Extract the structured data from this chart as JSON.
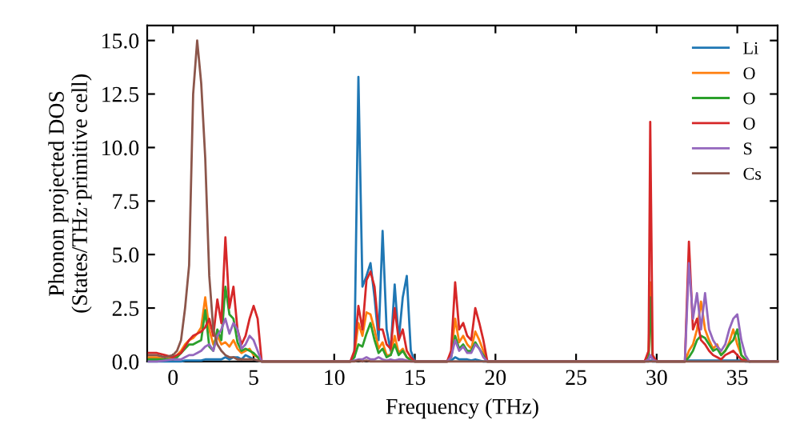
{
  "chart_data": {
    "type": "line",
    "xlabel": "Frequency (THz)",
    "ylabel": "Phonon projected DOS\n(States/THz·primitive cell)",
    "x": [
      -1.5,
      -1,
      -0.5,
      0,
      0.25,
      0.5,
      0.75,
      1,
      1.25,
      1.5,
      1.75,
      2,
      2.25,
      2.5,
      2.75,
      3,
      3.25,
      3.5,
      3.75,
      4,
      4.25,
      4.5,
      4.75,
      5,
      5.25,
      5.5,
      11.0,
      11.25,
      11.5,
      11.75,
      12.0,
      12.25,
      12.5,
      12.75,
      13.0,
      13.25,
      13.5,
      13.75,
      14.0,
      14.25,
      14.5,
      14.75,
      15.0,
      17,
      17.25,
      17.5,
      17.75,
      18,
      18.25,
      18.5,
      18.75,
      19,
      19.25,
      19.5,
      29.25,
      29.5,
      29.6,
      29.75,
      30,
      31.75,
      32,
      32.25,
      32.5,
      32.75,
      33,
      33.25,
      33.5,
      33.75,
      34,
      34.25,
      34.5,
      34.75,
      35,
      35.25,
      35.5,
      35.75,
      36,
      37.5
    ],
    "series": [
      {
        "name": "Li",
        "color": "#1f77b4",
        "values": [
          0,
          0,
          0,
          0,
          0,
          0,
          0.05,
          0.05,
          0.05,
          0.05,
          0.05,
          0.1,
          0.1,
          0.1,
          0.1,
          0.1,
          0.2,
          0.1,
          0.2,
          0.2,
          0.1,
          0.3,
          0.2,
          0.1,
          0.05,
          0,
          0,
          0.2,
          13.3,
          3.5,
          4.0,
          4.6,
          3.0,
          1.0,
          6.1,
          1.5,
          0.5,
          3.6,
          1.0,
          3.0,
          4.0,
          0.5,
          0,
          0,
          0.05,
          0.2,
          0.1,
          0.1,
          0.1,
          0.05,
          0.1,
          0.05,
          0,
          0,
          0,
          0,
          0.05,
          0,
          0,
          0,
          0.05,
          0.05,
          0.05,
          0.05,
          0.05,
          0.05,
          0.05,
          0.05,
          0.05,
          0.05,
          0.05,
          0.05,
          0.05,
          0.05,
          0,
          0,
          null,
          null
        ]
      },
      {
        "name": "O",
        "color": "#ff7f0e",
        "values": [
          0.2,
          0.2,
          0.1,
          0.2,
          0.3,
          0.5,
          0.8,
          1.0,
          1.1,
          1.3,
          1.6,
          3.0,
          1.5,
          0.8,
          1.2,
          0.8,
          0.9,
          0.7,
          1.0,
          0.6,
          0.4,
          0.5,
          0.6,
          0.3,
          0.2,
          0,
          0,
          0.3,
          1.8,
          1.2,
          2.3,
          2.2,
          1.5,
          0.6,
          0.9,
          0.3,
          0.3,
          1.2,
          0.4,
          0.6,
          0.2,
          0.1,
          0,
          0,
          0.3,
          2.0,
          0.9,
          1.2,
          0.8,
          0.6,
          1.4,
          1.0,
          0.5,
          0,
          0,
          0.3,
          3.7,
          0.2,
          0,
          0,
          0.5,
          0.8,
          1.5,
          2.8,
          1.5,
          1.0,
          0.6,
          0.8,
          0.3,
          0.5,
          0.9,
          1.5,
          0.8,
          0.3,
          0.1,
          null,
          null,
          null
        ]
      },
      {
        "name": "O",
        "color": "#2ca02c",
        "values": [
          0.1,
          0.1,
          0.1,
          0.1,
          0.2,
          0.4,
          0.6,
          0.8,
          0.8,
          0.9,
          1.0,
          2.4,
          0.7,
          0.5,
          1.5,
          1.0,
          3.5,
          2.2,
          2.0,
          0.9,
          0.5,
          0.6,
          0.5,
          0.4,
          0.2,
          0,
          0,
          0.2,
          0.8,
          0.7,
          1.3,
          1.8,
          1.0,
          0.4,
          0.6,
          0.2,
          0.3,
          0.8,
          0.3,
          0.5,
          0.2,
          0.05,
          0,
          0,
          0.2,
          1.2,
          0.6,
          0.8,
          0.5,
          0.5,
          0.9,
          0.6,
          0.3,
          0,
          0,
          0.2,
          3.0,
          0.1,
          0,
          0,
          0.2,
          0.5,
          1.0,
          1.2,
          1.1,
          0.8,
          0.5,
          0.6,
          0.3,
          0.5,
          0.8,
          1.0,
          1.5,
          0.3,
          0.1,
          0,
          0,
          0
        ]
      },
      {
        "name": "O",
        "color": "#d62728",
        "values": [
          0.4,
          0.4,
          0.3,
          0.2,
          0.3,
          0.4,
          0.7,
          1.0,
          1.2,
          1.3,
          1.4,
          1.6,
          2.0,
          1.2,
          2.9,
          1.8,
          5.8,
          2.5,
          3.5,
          1.5,
          0.8,
          1.2,
          2.0,
          2.6,
          2.0,
          0,
          0,
          0.5,
          2.6,
          1.5,
          3.8,
          4.2,
          3.5,
          1.5,
          1.5,
          0.8,
          0.6,
          2.5,
          1.0,
          1.5,
          0.5,
          0.2,
          0,
          0,
          0.5,
          3.7,
          1.5,
          1.8,
          1.2,
          1.0,
          2.5,
          1.8,
          1.0,
          0,
          0,
          0.5,
          11.2,
          0.3,
          0,
          0,
          5.6,
          1.5,
          2.0,
          1.0,
          0.8,
          0.5,
          0.3,
          0.2,
          0.1,
          0.3,
          0.4,
          0.5,
          0.3,
          0.1,
          0.05,
          0,
          0,
          0
        ]
      },
      {
        "name": "S",
        "color": "#9467bd",
        "values": [
          0,
          0,
          0.05,
          0.1,
          0.1,
          0.1,
          0.2,
          0.3,
          0.3,
          0.4,
          0.5,
          0.7,
          0.8,
          0.5,
          1.2,
          1.5,
          2.0,
          1.3,
          1.8,
          1.5,
          0.6,
          0.8,
          1.2,
          1.0,
          0.5,
          0,
          0,
          0.05,
          0.1,
          0.1,
          0.2,
          0.1,
          0.1,
          0.2,
          0.1,
          0.05,
          0.1,
          0.05,
          0.1,
          0.1,
          0.05,
          0,
          0,
          0,
          0.2,
          1.0,
          0.5,
          0.7,
          0.4,
          0.4,
          0.8,
          0.6,
          0.2,
          0,
          0,
          0.1,
          0.3,
          0.1,
          0,
          0,
          4.6,
          2.0,
          3.2,
          1.5,
          3.2,
          1.5,
          1.0,
          0.7,
          0.5,
          0.8,
          1.5,
          2.0,
          2.2,
          1.0,
          0.3,
          0,
          0,
          0
        ]
      },
      {
        "name": "Cs",
        "color": "#8c564b",
        "values": [
          0.3,
          0.3,
          0.2,
          0.3,
          0.5,
          1.0,
          2.5,
          4.5,
          12.5,
          15.0,
          13.0,
          9.5,
          4.0,
          1.5,
          0.8,
          0.5,
          0.3,
          0.2,
          0.2,
          0.1,
          0.1,
          0.1,
          0.1,
          0.1,
          0.05,
          0,
          0,
          0,
          0.05,
          0,
          0.05,
          0,
          0,
          0,
          0,
          0,
          0,
          0,
          0,
          0,
          0,
          0,
          0,
          0,
          0,
          0,
          0,
          0,
          0,
          0,
          0,
          0,
          0,
          0,
          0,
          0,
          0,
          0,
          0,
          0,
          0,
          0,
          0,
          0,
          0,
          0,
          0,
          0,
          0,
          0,
          0,
          0,
          0,
          0,
          0,
          0,
          0,
          0
        ]
      }
    ],
    "xlim": [
      -1.6,
      37.5
    ],
    "ylim": [
      0,
      15.7
    ],
    "xticks": [
      0,
      5,
      10,
      15,
      20,
      25,
      30,
      35
    ],
    "yticks": [
      {
        "value": 0,
        "label": "0.0"
      },
      {
        "value": 2.5,
        "label": "2.5"
      },
      {
        "value": 5,
        "label": "5.0"
      },
      {
        "value": 7.5,
        "label": "7.5"
      },
      {
        "value": 10,
        "label": "10.0"
      },
      {
        "value": 12.5,
        "label": "12.5"
      },
      {
        "value": 15,
        "label": "15.0"
      }
    ],
    "legend": "top right",
    "grid": false,
    "marker": "none",
    "line_style": "solid"
  }
}
